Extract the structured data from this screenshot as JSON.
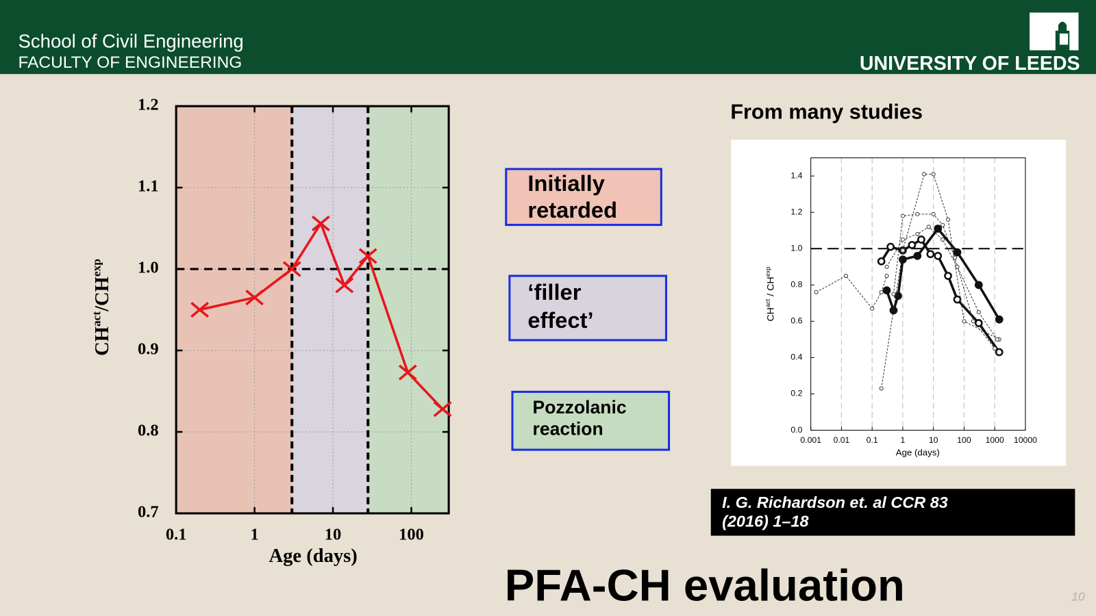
{
  "header": {
    "school": "School of Civil Engineering",
    "faculty": "FACULTY OF ENGINEERING",
    "university": "UNIVERSITY OF LEEDS"
  },
  "chart_data": [
    {
      "type": "line",
      "x_label": "Age (days)",
      "y_label": [
        "CH",
        "act",
        "/CH",
        "exp"
      ],
      "x_scale": "log",
      "xlim": [
        0.1,
        300
      ],
      "ylim": [
        0.7,
        1.2
      ],
      "xticks": [
        0.1,
        1,
        10,
        100
      ],
      "yticks": [
        0.7,
        0.8,
        0.9,
        {
          "value": 1,
          "label": "1.0"
        },
        1.1,
        1.2
      ],
      "grid": true,
      "reference_line": 1,
      "dividers": [
        3,
        28
      ],
      "region_colors": [
        "#e9c2b6",
        "#d9d4de",
        "#c8dcc3"
      ],
      "series": [
        {
          "color": "#e8161b",
          "marker": "x",
          "line_width": 3.5,
          "dashed": false,
          "x": [
            0.2,
            1,
            3,
            7,
            14,
            28,
            90,
            250
          ],
          "values": [
            0.95,
            0.965,
            1.0,
            1.056,
            0.98,
            1.016,
            0.873,
            0.828
          ]
        }
      ]
    },
    {
      "type": "line",
      "title": "From many studies",
      "x_label": "Age (days)",
      "y_label": [
        "CH",
        "act",
        " / CH",
        "exp"
      ],
      "x_scale": "log",
      "xlim": [
        0.001,
        10000
      ],
      "ylim": [
        0,
        1.5
      ],
      "xticks": [
        0.001,
        0.01,
        0.1,
        1,
        10,
        100,
        1000,
        10000
      ],
      "yticks": [
        {
          "value": 0,
          "label": "0.0"
        },
        0.2,
        0.4,
        0.6,
        0.8,
        {
          "value": 1,
          "label": "1.0"
        },
        1.2,
        1.4
      ],
      "grid": "x",
      "reference_line": 1,
      "series": [
        {
          "color": "#111111",
          "marker": "filled",
          "line_width": 3.5,
          "dashed": false,
          "x": [
            0.3,
            0.5,
            0.7,
            1,
            3,
            14,
            60,
            300,
            1400
          ],
          "values": [
            0.77,
            0.66,
            0.74,
            0.94,
            0.96,
            1.11,
            0.98,
            0.8,
            0.61
          ]
        },
        {
          "color": "#111111",
          "marker": "open",
          "line_width": 3.5,
          "dashed": false,
          "x": [
            0.2,
            0.4,
            1,
            2,
            4,
            8,
            14,
            30,
            60,
            300,
            1400
          ],
          "values": [
            0.93,
            1.01,
            0.99,
            1.02,
            1.05,
            0.97,
            0.96,
            0.85,
            0.72,
            0.59,
            0.43
          ]
        },
        {
          "color": "#333333",
          "marker": "open",
          "line_width": 1,
          "dashed": true,
          "x": [
            0.0015,
            0.014,
            0.1,
            0.2,
            0.3
          ],
          "values": [
            0.76,
            0.85,
            0.67,
            0.76,
            0.85
          ]
        },
        {
          "color": "#333333",
          "marker": "open",
          "line_width": 1,
          "dashed": true,
          "x": [
            0.2,
            1,
            5,
            10,
            30,
            100,
            1400
          ],
          "values": [
            0.23,
            0.99,
            1.41,
            1.41,
            1.16,
            0.6,
            0.5
          ]
        },
        {
          "color": "#333333",
          "marker": "open",
          "line_width": 1,
          "dashed": true,
          "x": [
            0.5,
            1,
            3,
            10,
            20,
            50,
            200,
            1000
          ],
          "values": [
            0.75,
            1.18,
            1.19,
            1.19,
            1.13,
            0.95,
            0.6,
            0.45
          ]
        },
        {
          "color": "#333333",
          "marker": "open",
          "line_width": 1,
          "dashed": true,
          "x": [
            0.3,
            1,
            3,
            7,
            20,
            60,
            300,
            1200
          ],
          "values": [
            0.9,
            1.05,
            1.08,
            1.12,
            1.05,
            0.9,
            0.65,
            0.5
          ]
        }
      ]
    }
  ],
  "labels": [
    {
      "lines": [
        "Initially",
        "retarded"
      ],
      "color": "#f0c3b6"
    },
    {
      "lines": [
        "‘filler",
        "effect’"
      ],
      "color": "#d8d3dd"
    },
    {
      "lines": [
        "Pozzolanic",
        "reaction"
      ],
      "color": "#c5dcc0"
    }
  ],
  "citation": [
    "I. G. Richardson et. al  CCR 83",
    "(2016) 1–18"
  ],
  "title": "PFA-CH evaluation",
  "page_number": "10"
}
